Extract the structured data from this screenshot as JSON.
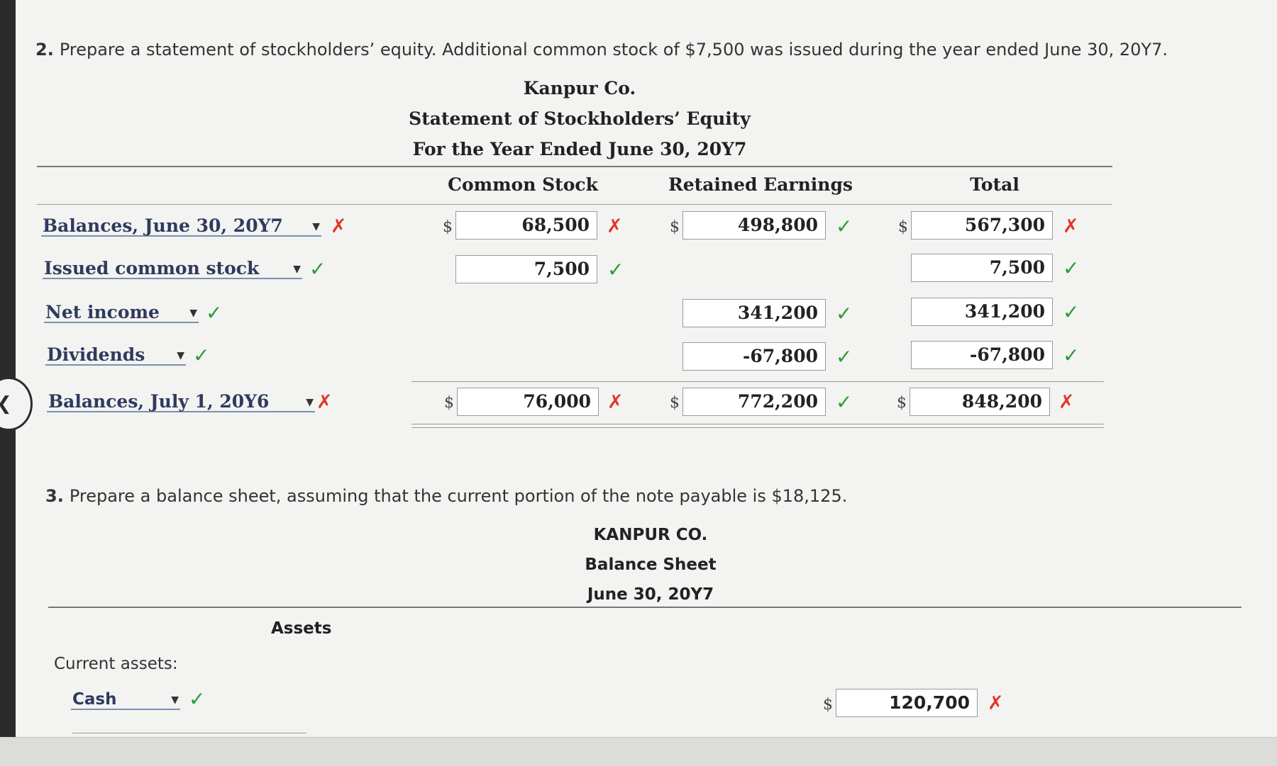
{
  "question2": {
    "number": "2.",
    "text": "Prepare a statement of stockholders’ equity. Additional common stock of $7,500 was issued during the year ended June 30, 20Y7."
  },
  "statement": {
    "company": "Kanpur Co.",
    "title": "Statement of Stockholders’ Equity",
    "period": "For the Year Ended June 30, 20Y7",
    "columns": {
      "common_stock": "Common Stock",
      "retained_earnings": "Retained Earnings",
      "total": "Total"
    },
    "currency_symbol": "$",
    "rows": [
      {
        "label": "Balances, June 30, 20Y7",
        "label_mark": "✗",
        "common_stock": "68,500",
        "cs_mark": "✗",
        "retained_earnings": "498,800",
        "re_mark": "✓",
        "total": "567,300",
        "total_mark": "✗"
      },
      {
        "label": "Issued common stock",
        "label_mark": "✓",
        "common_stock": "7,500",
        "cs_mark": "✓",
        "total": "7,500",
        "total_mark": "✓"
      },
      {
        "label": "Net income",
        "label_mark": "✓",
        "retained_earnings": "341,200",
        "re_mark": "✓",
        "total": "341,200",
        "total_mark": "✓"
      },
      {
        "label": "Dividends",
        "label_mark": "✓",
        "retained_earnings": "-67,800",
        "re_mark": "✓",
        "total": "-67,800",
        "total_mark": "✓"
      },
      {
        "label": "Balances, July 1, 20Y6",
        "label_mark": "✗",
        "common_stock": "76,000",
        "cs_mark": "✗",
        "retained_earnings": "772,200",
        "re_mark": "✓",
        "total": "848,200",
        "total_mark": "✗"
      }
    ],
    "mark_colors": {
      "correct": "#2e9a34",
      "incorrect": "#e0362b"
    }
  },
  "question3": {
    "number": "3.",
    "text": "Prepare a balance sheet, assuming that the current portion of the note payable is $18,125."
  },
  "balance_sheet": {
    "company": "KANPUR CO.",
    "title": "Balance Sheet",
    "date": "June 30, 20Y7",
    "section_assets": "Assets",
    "current_assets_label": "Current assets:",
    "currency_symbol": "$",
    "cash": {
      "label": "Cash",
      "label_mark": "✓",
      "value": "120,700",
      "value_mark": "✗"
    }
  },
  "icons": {
    "dropdown": "caret-down-icon",
    "correct": "check-icon",
    "incorrect": "x-icon",
    "nav": "chevron-left-icon"
  }
}
